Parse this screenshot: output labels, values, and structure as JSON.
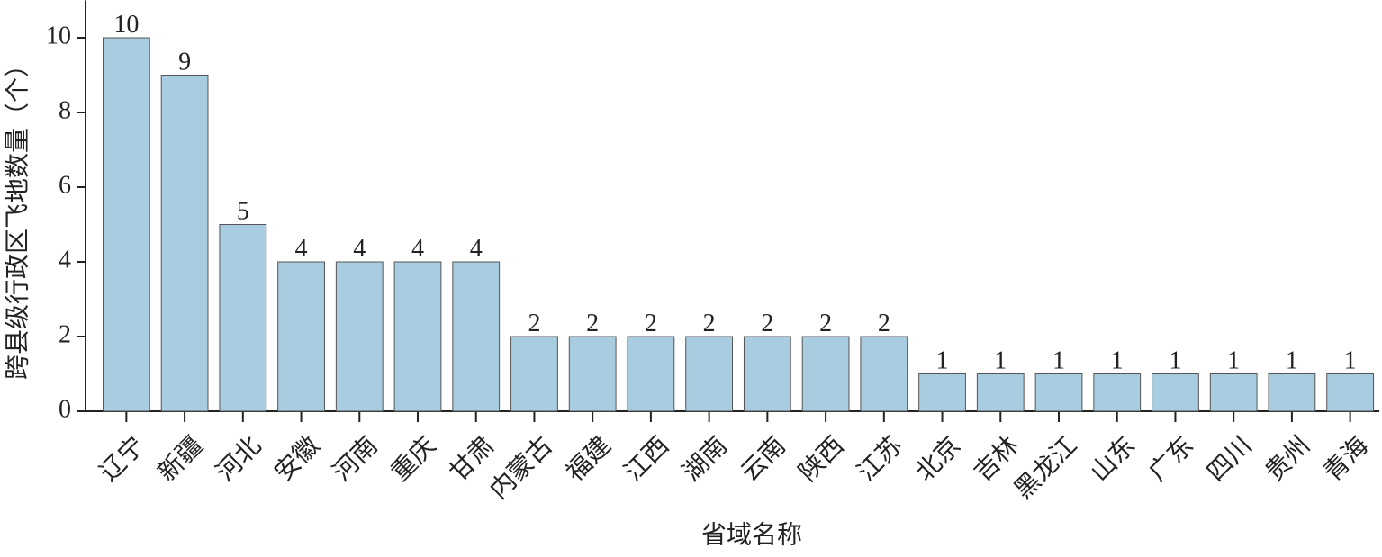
{
  "chart_data": {
    "type": "bar",
    "x_label": "省域名称",
    "y_label": "跨县级行政区飞地数量（个）",
    "categories": [
      "辽宁",
      "新疆",
      "河北",
      "安徽",
      "河南",
      "重庆",
      "甘肃",
      "内蒙古",
      "福建",
      "江西",
      "湖南",
      "云南",
      "陕西",
      "江苏",
      "北京",
      "吉林",
      "黑龙江",
      "山东",
      "广东",
      "四川",
      "贵州",
      "青海"
    ],
    "values": [
      10,
      9,
      5,
      4,
      4,
      4,
      4,
      2,
      2,
      2,
      2,
      2,
      2,
      2,
      1,
      1,
      1,
      1,
      1,
      1,
      1,
      1
    ],
    "color": "#a8cde0",
    "ylim": [
      0,
      11
    ],
    "yticks": [
      0,
      2,
      4,
      6,
      8,
      10
    ],
    "grid": false
  }
}
